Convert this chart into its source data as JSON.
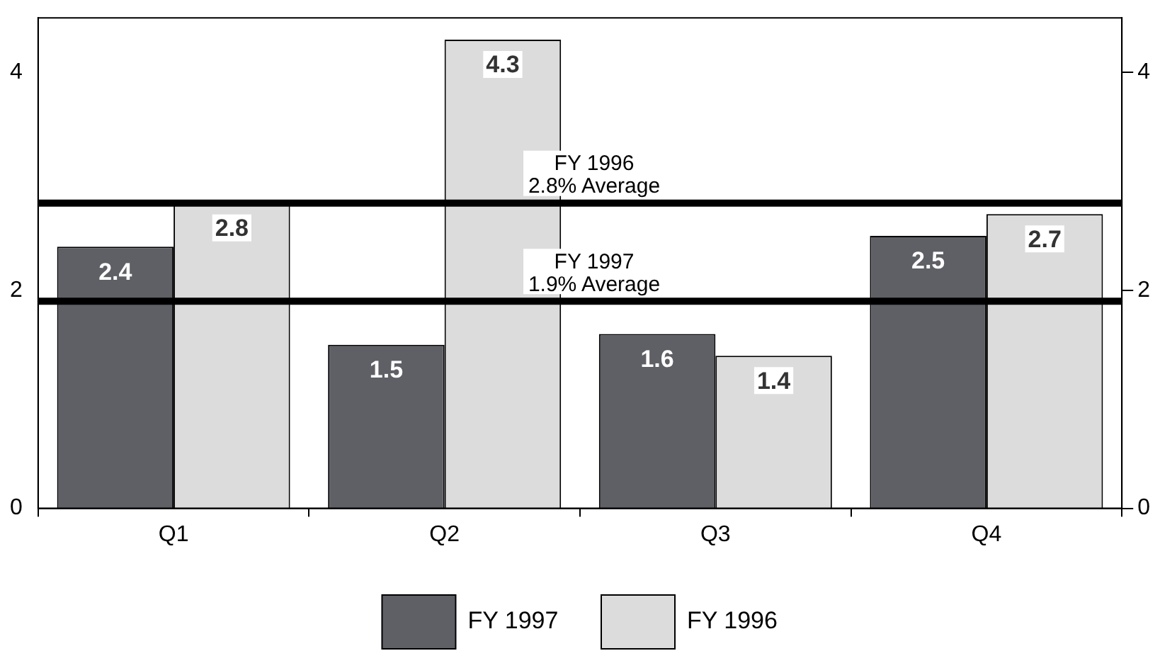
{
  "chart_data": {
    "type": "bar",
    "categories": [
      "Q1",
      "Q2",
      "Q3",
      "Q4"
    ],
    "series": [
      {
        "name": "FY 1997",
        "color": "#5f6066",
        "values": [
          2.4,
          1.5,
          1.6,
          2.5
        ]
      },
      {
        "name": "FY 1996",
        "color": "#dcdcdc",
        "values": [
          2.8,
          4.3,
          1.4,
          2.7
        ]
      }
    ],
    "ylim": [
      0,
      4.5
    ],
    "yticks": [
      0,
      2,
      4
    ],
    "y2lim": [
      0,
      4.5
    ],
    "y2ticks": [
      0,
      2,
      4
    ],
    "ref_lines": [
      {
        "axis": "y",
        "value": 2.8,
        "label": "FY 1996\n2.8% Average",
        "color": "#000000"
      },
      {
        "axis": "y",
        "value": 1.9,
        "label": "FY 1997\n1.9% Average",
        "color": "#000000"
      }
    ],
    "data_labels": true,
    "legend": "bottom",
    "grid": false
  }
}
